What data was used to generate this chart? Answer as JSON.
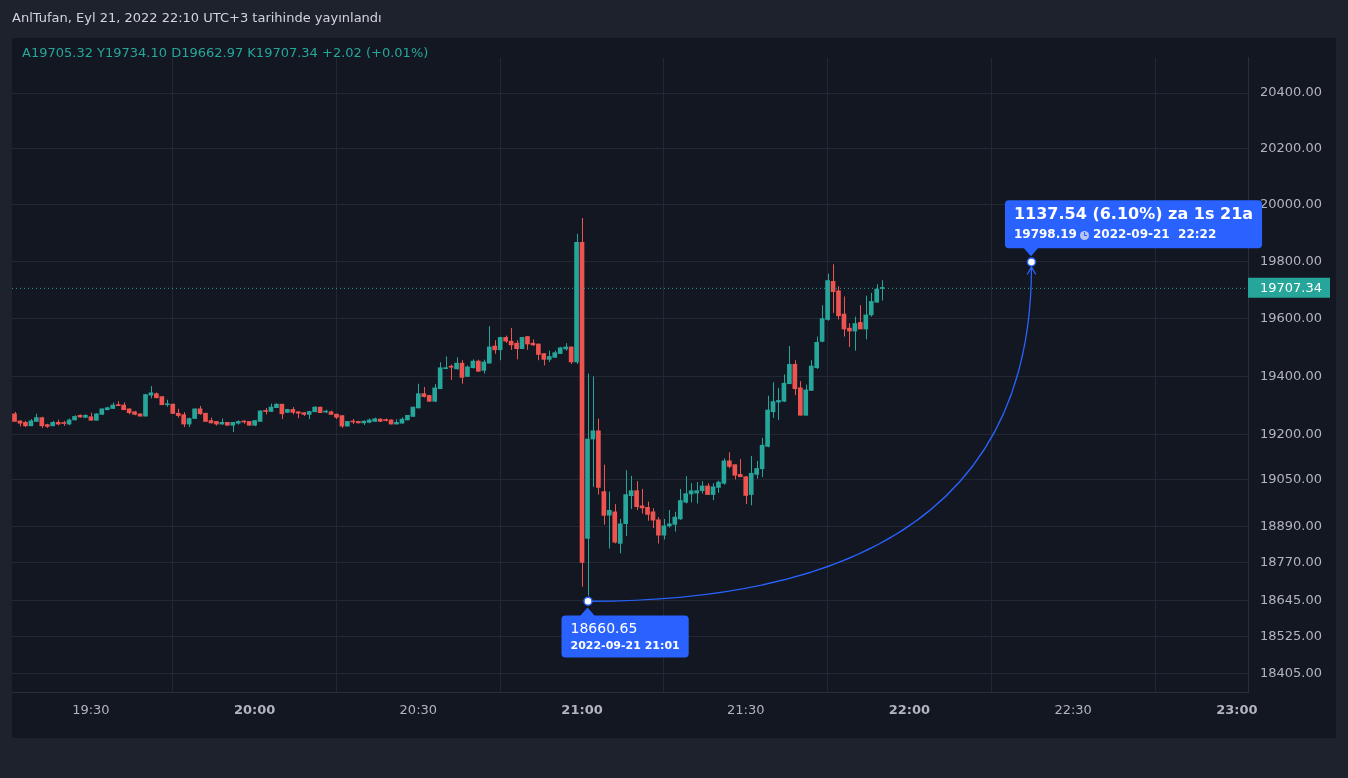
{
  "chart_data": {
    "type": "candlestick",
    "title": "AnlTufan, Eyl 21, 2022 22:10 UTC+3 tarihinde yayınlandı",
    "subtitle": "A19705.32  Y19734.10  D19662.97  K19707.34  +2.02 (+0.01%)",
    "colors": [
      "#ef5350",
      "#ef5350",
      "#ef5350",
      "#26a69a",
      "#26a69a",
      "#ef5350",
      "#ef5350",
      "#26a69a",
      "#ef5350",
      "#ef5350",
      "#26a69a",
      "#26a69a",
      "#ef5350",
      "#26a69a",
      "#ef5350",
      "#26a69a",
      "#26a69a",
      "#26a69a",
      "#26a69a",
      "#ef5350",
      "#ef5350",
      "#ef5350",
      "#ef5350",
      "#ef5350",
      "#26a69a",
      "#26a69a",
      "#ef5350",
      "#ef5350",
      "#26a69a",
      "#ef5350",
      "#ef5350",
      "#ef5350",
      "#26a69a",
      "#26a69a",
      "#ef5350",
      "#ef5350",
      "#ef5350",
      "#ef5350",
      "#26a69a",
      "#ef5350",
      "#26a69a",
      "#26a69a",
      "#ef5350",
      "#ef5350",
      "#26a69a",
      "#26a69a",
      "#ef5350",
      "#26a69a",
      "#26a69a",
      "#ef5350",
      "#26a69a",
      "#ef5350",
      "#ef5350",
      "#ef5350",
      "#26a69a",
      "#26a69a",
      "#ef5350",
      "#26a69a",
      "#ef5350",
      "#ef5350",
      "#ef5350",
      "#26a69a",
      "#ef5350",
      "#ef5350",
      "#26a69a",
      "#26a69a",
      "#26a69a",
      "#ef5350",
      "#ef5350",
      "#ef5350",
      "#26a69a",
      "#26a69a",
      "#26a69a",
      "#26a69a",
      "#26a69a",
      "#ef5350",
      "#ef5350",
      "#26a69a",
      "#26a69a",
      "#26a69a",
      "#ef5350",
      "#26a69a",
      "#ef5350",
      "#26a69a",
      "#26a69a",
      "#ef5350",
      "#26a69a",
      "#26a69a",
      "#ef5350",
      "#26a69a",
      "#ef5350",
      "#ef5350",
      "#ef5350",
      "#26a69a",
      "#ef5350",
      "#ef5350",
      "#ef5350",
      "#ef5350",
      "#26a69a",
      "#26a69a",
      "#26a69a",
      "#26a69a",
      "#ef5350",
      "#26a69a",
      "#ef5350",
      "#26a69a",
      "#26a69a",
      "#ef5350",
      "#ef5350",
      "#26a69a",
      "#ef5350",
      "#26a69a",
      "#26a69a",
      "#26a69a",
      "#ef5350",
      "#ef5350",
      "#ef5350",
      "#ef5350",
      "#ef5350",
      "#26a69a",
      "#26a69a",
      "#26a69a",
      "#26a69a",
      "#26a69a",
      "#26a69a",
      "#26a69a",
      "#26a69a",
      "#ef5350",
      "#26a69a",
      "#26a69a",
      "#26a69a",
      "#ef5350",
      "#ef5350",
      "#ef5350",
      "#ef5350",
      "#26a69a",
      "#26a69a",
      "#26a69a",
      "#26a69a",
      "#26a69a",
      "#26a69a",
      "#26a69a",
      "#26a69a",
      "#ef5350",
      "#ef5350",
      "#26a69a",
      "#26a69a",
      "#26a69a",
      "#26a69a",
      "#26a69a",
      "#ef5350",
      "#ef5350",
      "#ef5350",
      "#ef5350",
      "#26a69a",
      "#ef5350",
      "#26a69a",
      "#26a69a",
      "#26a69a",
      "#26a69a"
    ],
    "log": true,
    "grid": true,
    "legend": false,
    "xlim": [
      19.259,
      23.034
    ],
    "xticks": [
      {
        "value": 19.5,
        "label": "19:30"
      },
      {
        "value": 20,
        "label": "20:00"
      },
      {
        "value": 20.5,
        "label": "20:30"
      },
      {
        "value": 21,
        "label": "21:00"
      },
      {
        "value": 21.5,
        "label": "21:30"
      },
      {
        "value": 22,
        "label": "22:00"
      },
      {
        "value": 22.5,
        "label": "22:30"
      },
      {
        "value": 23,
        "label": "23:00"
      }
    ],
    "ylim": [
      18343,
      20528
    ],
    "yticks": [
      {
        "value": 18405,
        "label": "18405.00"
      },
      {
        "value": 18525,
        "label": "18525.00"
      },
      {
        "value": 18645,
        "label": "18645.00"
      },
      {
        "value": 18770,
        "label": "18770.00"
      },
      {
        "value": 18890,
        "label": "18890.00"
      },
      {
        "value": 19050,
        "label": "19050.00"
      },
      {
        "value": 19200,
        "label": "19200.00"
      },
      {
        "value": 19400,
        "label": "19400.00"
      },
      {
        "value": 19600,
        "label": "19600.00"
      },
      {
        "value": 19800,
        "label": "19800.00"
      },
      {
        "value": 20000,
        "label": "20000.00"
      },
      {
        "value": 20200,
        "label": "20200.00"
      },
      {
        "value": 20400,
        "label": "20400.00"
      }
    ],
    "ref_lines": [
      {
        "axis": "y",
        "value": 19707.34,
        "label": "19707.34",
        "color": "#26a69a",
        "line_style": "dotted"
      }
    ],
    "annotations": [
      "1137.54 (6.10%) za 1s 21a",
      "19798.19",
      "2022-09-21  22:22",
      "18660.65",
      "2022-09-21 21:01"
    ],
    "x": [
      19.2667,
      19.2833,
      19.3,
      19.3167,
      19.3333,
      19.35,
      19.3667,
      19.3833,
      19.4,
      19.4167,
      19.4333,
      19.45,
      19.4667,
      19.4833,
      19.5,
      19.5167,
      19.5333,
      19.55,
      19.5667,
      19.5833,
      19.6,
      19.6167,
      19.6333,
      19.65,
      19.6667,
      19.6833,
      19.7,
      19.7167,
      19.7333,
      19.75,
      19.7667,
      19.7833,
      19.8,
      19.8167,
      19.8333,
      19.85,
      19.8667,
      19.8833,
      19.9,
      19.9167,
      19.9333,
      19.95,
      19.9667,
      19.9833,
      20,
      20.0167,
      20.0333,
      20.05,
      20.0667,
      20.0833,
      20.1,
      20.1167,
      20.1333,
      20.15,
      20.1667,
      20.1833,
      20.2,
      20.2167,
      20.2333,
      20.25,
      20.2667,
      20.2833,
      20.3,
      20.3167,
      20.3333,
      20.35,
      20.3667,
      20.3833,
      20.4,
      20.4167,
      20.4333,
      20.45,
      20.4667,
      20.4833,
      20.5,
      20.5167,
      20.5333,
      20.55,
      20.5667,
      20.5833,
      20.6,
      20.6167,
      20.6333,
      20.65,
      20.6667,
      20.6833,
      20.7,
      20.7167,
      20.7333,
      20.75,
      20.7667,
      20.7833,
      20.8,
      20.8167,
      20.8333,
      20.85,
      20.8667,
      20.8833,
      20.9,
      20.9167,
      20.9333,
      20.95,
      20.9667,
      20.9833,
      21,
      21.0167,
      21.0333,
      21.05,
      21.0667,
      21.0833,
      21.1,
      21.1167,
      21.1333,
      21.15,
      21.1667,
      21.1833,
      21.2,
      21.2167,
      21.2333,
      21.25,
      21.2667,
      21.2833,
      21.3,
      21.3167,
      21.3333,
      21.35,
      21.3667,
      21.3833,
      21.4,
      21.4167,
      21.4333,
      21.45,
      21.4667,
      21.4833,
      21.5,
      21.5167,
      21.5333,
      21.55,
      21.5667,
      21.5833,
      21.6,
      21.6167,
      21.6333,
      21.65,
      21.6667,
      21.6833,
      21.7,
      21.7167,
      21.7333,
      21.75,
      21.7667,
      21.7833,
      21.8,
      21.8167,
      21.8333,
      21.85,
      21.8667,
      21.8833,
      21.9,
      21.9167
    ],
    "ohlc": [
      [
        19272,
        19279,
        19246,
        19246
      ],
      [
        19248,
        19248,
        19229,
        19240
      ],
      [
        19243,
        19248,
        19227,
        19231
      ],
      [
        19231,
        19254,
        19230,
        19248
      ],
      [
        19246,
        19272,
        19245,
        19259
      ],
      [
        19259,
        19262,
        19224,
        19231
      ],
      [
        19235,
        19238,
        19224,
        19229
      ],
      [
        19231,
        19248,
        19230,
        19243
      ],
      [
        19243,
        19252,
        19233,
        19237
      ],
      [
        19241,
        19248,
        19231,
        19239
      ],
      [
        19237,
        19256,
        19233,
        19251
      ],
      [
        19251,
        19267,
        19250,
        19263
      ],
      [
        19267,
        19270,
        19259,
        19261
      ],
      [
        19260,
        19270,
        19257,
        19267
      ],
      [
        19262,
        19276,
        19249,
        19250
      ],
      [
        19250,
        19274,
        19249,
        19272
      ],
      [
        19270,
        19290,
        19269,
        19289
      ],
      [
        19286,
        19296,
        19284,
        19293
      ],
      [
        19290,
        19311,
        19289,
        19302
      ],
      [
        19302,
        19315,
        19299,
        19300
      ],
      [
        19302,
        19311,
        19285,
        19286
      ],
      [
        19289,
        19290,
        19270,
        19276
      ],
      [
        19279,
        19282,
        19267,
        19270
      ],
      [
        19272,
        19273,
        19263,
        19264
      ],
      [
        19264,
        19340,
        19263,
        19338
      ],
      [
        19336,
        19367,
        19325,
        19344
      ],
      [
        19341,
        19345,
        19325,
        19327
      ],
      [
        19331,
        19332,
        19302,
        19303
      ],
      [
        19303,
        19320,
        19296,
        19305
      ],
      [
        19305,
        19307,
        19272,
        19273
      ],
      [
        19274,
        19289,
        19259,
        19266
      ],
      [
        19269,
        19278,
        19227,
        19237
      ],
      [
        19237,
        19259,
        19227,
        19256
      ],
      [
        19256,
        19290,
        19255,
        19289
      ],
      [
        19289,
        19299,
        19269,
        19272
      ],
      [
        19274,
        19275,
        19244,
        19246
      ],
      [
        19249,
        19259,
        19239,
        19241
      ],
      [
        19246,
        19247,
        19232,
        19237
      ],
      [
        19237,
        19256,
        19235,
        19243
      ],
      [
        19243,
        19244,
        19232,
        19233
      ],
      [
        19233,
        19244,
        19210,
        19243
      ],
      [
        19240,
        19250,
        19235,
        19246
      ],
      [
        19246,
        19250,
        19238,
        19244
      ],
      [
        19246,
        19247,
        19232,
        19233
      ],
      [
        19233,
        19251,
        19230,
        19249
      ],
      [
        19246,
        19284,
        19245,
        19282
      ],
      [
        19282,
        19292,
        19270,
        19280
      ],
      [
        19280,
        19307,
        19279,
        19295
      ],
      [
        19293,
        19308,
        19292,
        19305
      ],
      [
        19305,
        19306,
        19254,
        19272
      ],
      [
        19277,
        19289,
        19275,
        19287
      ],
      [
        19287,
        19295,
        19270,
        19277
      ],
      [
        19279,
        19281,
        19257,
        19274
      ],
      [
        19276,
        19278,
        19265,
        19270
      ],
      [
        19270,
        19282,
        19254,
        19280
      ],
      [
        19279,
        19298,
        19278,
        19295
      ],
      [
        19295,
        19296,
        19275,
        19276
      ],
      [
        19278,
        19286,
        19274,
        19280
      ],
      [
        19279,
        19283,
        19268,
        19270
      ],
      [
        19271,
        19272,
        19254,
        19260
      ],
      [
        19266,
        19267,
        19224,
        19230
      ],
      [
        19230,
        19247,
        19229,
        19246
      ],
      [
        19246,
        19254,
        19237,
        19244
      ],
      [
        19246,
        19248,
        19239,
        19241
      ],
      [
        19241,
        19250,
        19234,
        19247
      ],
      [
        19243,
        19256,
        19240,
        19251
      ],
      [
        19246,
        19259,
        19245,
        19255
      ],
      [
        19254,
        19257,
        19244,
        19246
      ],
      [
        19251,
        19256,
        19246,
        19249
      ],
      [
        19251,
        19253,
        19236,
        19237
      ],
      [
        19237,
        19253,
        19236,
        19243
      ],
      [
        19240,
        19260,
        19239,
        19254
      ],
      [
        19251,
        19268,
        19250,
        19267
      ],
      [
        19263,
        19296,
        19262,
        19295
      ],
      [
        19292,
        19375,
        19291,
        19341
      ],
      [
        19341,
        19364,
        19328,
        19331
      ],
      [
        19335,
        19337,
        19313,
        19315
      ],
      [
        19315,
        19374,
        19312,
        19361
      ],
      [
        19358,
        19449,
        19357,
        19430
      ],
      [
        19427,
        19469,
        19425,
        19430
      ],
      [
        19434,
        19441,
        19388,
        19432
      ],
      [
        19426,
        19466,
        19424,
        19446
      ],
      [
        19446,
        19456,
        19375,
        19397
      ],
      [
        19400,
        19438,
        19398,
        19433
      ],
      [
        19430,
        19459,
        19428,
        19453
      ],
      [
        19453,
        19458,
        19416,
        19418
      ],
      [
        19421,
        19458,
        19410,
        19450
      ],
      [
        19446,
        19574,
        19444,
        19502
      ],
      [
        19505,
        19525,
        19478,
        19492
      ],
      [
        19492,
        19537,
        19456,
        19535
      ],
      [
        19535,
        19541,
        19516,
        19522
      ],
      [
        19522,
        19568,
        19492,
        19509
      ],
      [
        19515,
        19525,
        19459,
        19496
      ],
      [
        19496,
        19537,
        19495,
        19535
      ],
      [
        19538,
        19540,
        19492,
        19512
      ],
      [
        19515,
        19528,
        19505,
        19509
      ],
      [
        19512,
        19514,
        19456,
        19476
      ],
      [
        19479,
        19481,
        19438,
        19459
      ],
      [
        19459,
        19489,
        19450,
        19469
      ],
      [
        19466,
        19489,
        19465,
        19482
      ],
      [
        19479,
        19502,
        19478,
        19499
      ],
      [
        19495,
        19515,
        19489,
        19502
      ],
      [
        19502,
        19503,
        19443,
        19450
      ],
      [
        19450,
        19897,
        19443,
        19867
      ],
      [
        19867,
        19953,
        18690,
        18771
      ],
      [
        18851,
        19410,
        18660.65,
        19186
      ],
      [
        19186,
        19400,
        19024,
        19214
      ],
      [
        19214,
        19256,
        18998,
        19022
      ],
      [
        19008,
        19099,
        18897,
        18928
      ],
      [
        18929,
        19008,
        18817,
        18945
      ],
      [
        18940,
        18966,
        18834,
        18838
      ],
      [
        18834,
        18916,
        18801,
        18900
      ],
      [
        18900,
        19080,
        18859,
        18998
      ],
      [
        18994,
        19061,
        18949,
        19011
      ],
      [
        19011,
        19043,
        18946,
        18957
      ],
      [
        18960,
        19017,
        18934,
        18953
      ],
      [
        18955,
        18974,
        18910,
        18931
      ],
      [
        18940,
        18952,
        18885,
        18912
      ],
      [
        18913,
        18922,
        18834,
        18862
      ],
      [
        18862,
        18916,
        18847,
        18893
      ],
      [
        18893,
        18946,
        18887,
        18900
      ],
      [
        18898,
        18940,
        18874,
        18922
      ],
      [
        18916,
        19017,
        18913,
        18978
      ],
      [
        18972,
        19060,
        18968,
        19001
      ],
      [
        19000,
        19036,
        18972,
        19011
      ],
      [
        19003,
        19040,
        18968,
        19011
      ],
      [
        19011,
        19043,
        19001,
        19027
      ],
      [
        19027,
        19036,
        18998,
        18998
      ],
      [
        18998,
        19036,
        18979,
        19024
      ],
      [
        19022,
        19045,
        19004,
        19040
      ],
      [
        19036,
        19120,
        19031,
        19112
      ],
      [
        19112,
        19141,
        19087,
        19093
      ],
      [
        19099,
        19099,
        19049,
        19063
      ],
      [
        19066,
        19118,
        19058,
        19058
      ],
      [
        19058,
        19061,
        18966,
        18995
      ],
      [
        18998,
        19128,
        18962,
        19070
      ],
      [
        19066,
        19112,
        19052,
        19086
      ],
      [
        19085,
        19190,
        19057,
        19165
      ],
      [
        19161,
        19334,
        19158,
        19285
      ],
      [
        19279,
        19380,
        19258,
        19314
      ],
      [
        19312,
        19361,
        19251,
        19318
      ],
      [
        19315,
        19407,
        19312,
        19377
      ],
      [
        19375,
        19505,
        19375,
        19442
      ],
      [
        19442,
        19456,
        19336,
        19358
      ],
      [
        19361,
        19384,
        19267,
        19267
      ],
      [
        19267,
        19372,
        19267,
        19354
      ],
      [
        19352,
        19456,
        19352,
        19436
      ],
      [
        19430,
        19538,
        19426,
        19518
      ],
      [
        19521,
        19647,
        19518,
        19600
      ],
      [
        19597,
        19757,
        19593,
        19733
      ],
      [
        19730,
        19790,
        19620,
        19694
      ],
      [
        19697,
        19713,
        19597,
        19610
      ],
      [
        19616,
        19677,
        19538,
        19564
      ],
      [
        19567,
        19584,
        19502,
        19557
      ],
      [
        19557,
        19607,
        19489,
        19583
      ],
      [
        19587,
        19647,
        19564,
        19564
      ],
      [
        19564,
        19680,
        19528,
        19613
      ],
      [
        19613,
        19690,
        19607,
        19660
      ],
      [
        19657,
        19720,
        19657,
        19703
      ],
      [
        19705.32,
        19734.1,
        19662.97,
        19707.34
      ]
    ]
  }
}
